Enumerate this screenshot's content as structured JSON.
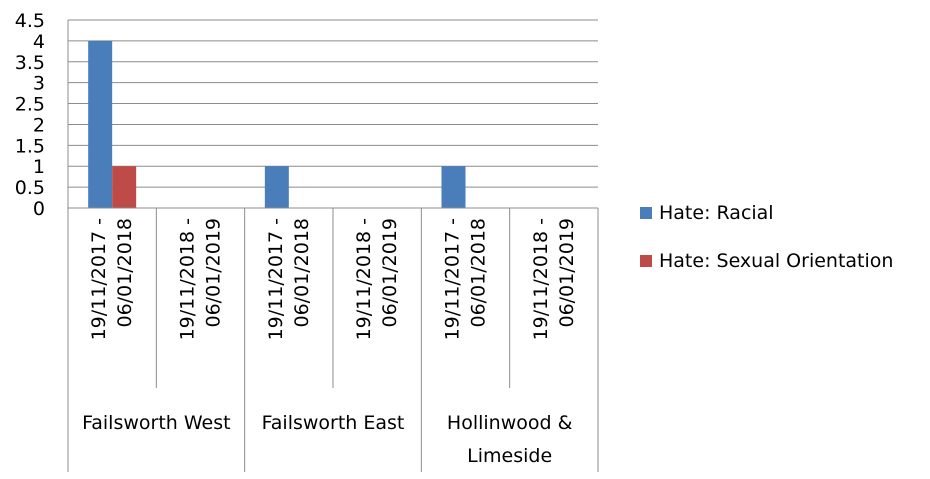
{
  "chart_data": {
    "type": "bar",
    "title": "",
    "xlabel": "",
    "ylabel": "",
    "ylim": [
      0,
      4.5
    ],
    "yticks": [
      "0",
      "0.5",
      "1",
      "1.5",
      "2",
      "2.5",
      "3",
      "3.5",
      "4",
      "4.5"
    ],
    "grid": true,
    "legend_position": "right",
    "groups": [
      {
        "label": "Failsworth West",
        "periods": [
          "19/11/2017 -\n06/01/2018",
          "19/11/2018 -\n06/01/2019"
        ]
      },
      {
        "label": "Failsworth East",
        "periods": [
          "19/11/2017 -\n06/01/2018",
          "19/11/2018 -\n06/01/2019"
        ]
      },
      {
        "label": "Hollinwood &\nLimeside",
        "periods": [
          "19/11/2017 -\n06/01/2018",
          "19/11/2018 -\n06/01/2019"
        ]
      }
    ],
    "series": [
      {
        "name": "Hate: Racial",
        "color": "#4a7ebb",
        "values": [
          4,
          0,
          1,
          0,
          1,
          0
        ]
      },
      {
        "name": "Hate: Sexual Orientation",
        "color": "#be4b48",
        "values": [
          1,
          0,
          0,
          0,
          0,
          0
        ]
      }
    ]
  }
}
